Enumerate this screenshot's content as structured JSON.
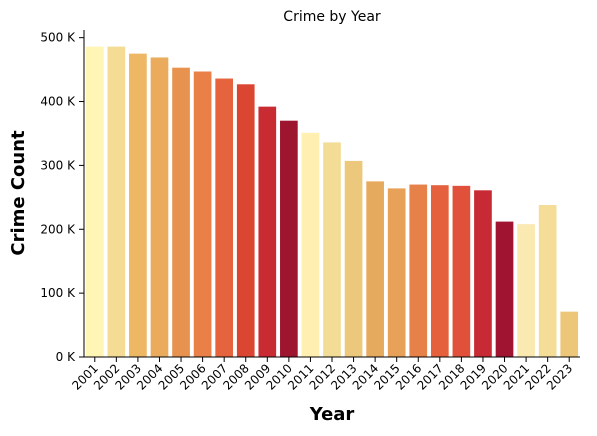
{
  "chart_data": {
    "type": "bar",
    "title": "Crime by Year",
    "xlabel": "Year",
    "ylabel": "Crime Count",
    "categories": [
      "2001",
      "2002",
      "2003",
      "2004",
      "2005",
      "2006",
      "2007",
      "2008",
      "2009",
      "2010",
      "2011",
      "2012",
      "2013",
      "2014",
      "2015",
      "2016",
      "2017",
      "2018",
      "2019",
      "2020",
      "2021",
      "2022",
      "2023"
    ],
    "values": [
      486000,
      486000,
      475000,
      469000,
      453000,
      447000,
      436000,
      427000,
      392000,
      370000,
      351000,
      336000,
      307000,
      275000,
      264000,
      270000,
      269000,
      268000,
      261000,
      212000,
      208000,
      238000,
      71000
    ],
    "colors": [
      "#fff5b5",
      "#f4dc95",
      "#edb764",
      "#eaab5c",
      "#e8924f",
      "#e88048",
      "#e5643d",
      "#db4633",
      "#c82b32",
      "#9e1530",
      "#fff0b2",
      "#f3dc96",
      "#ebc87c",
      "#e6aa5e",
      "#e7a159",
      "#e68149",
      "#e5603d",
      "#e0503a",
      "#c72a34",
      "#a01431",
      "#faeab1",
      "#f3dd97",
      "#ecc77a"
    ],
    "ylim": [
      0,
      512000
    ],
    "yticks": [
      0,
      100000,
      200000,
      300000,
      400000,
      500000
    ],
    "ytick_labels": [
      "0 K",
      "100 K",
      "200 K",
      "300 K",
      "400 K",
      "500 K"
    ],
    "grid": false,
    "legend": "none"
  }
}
